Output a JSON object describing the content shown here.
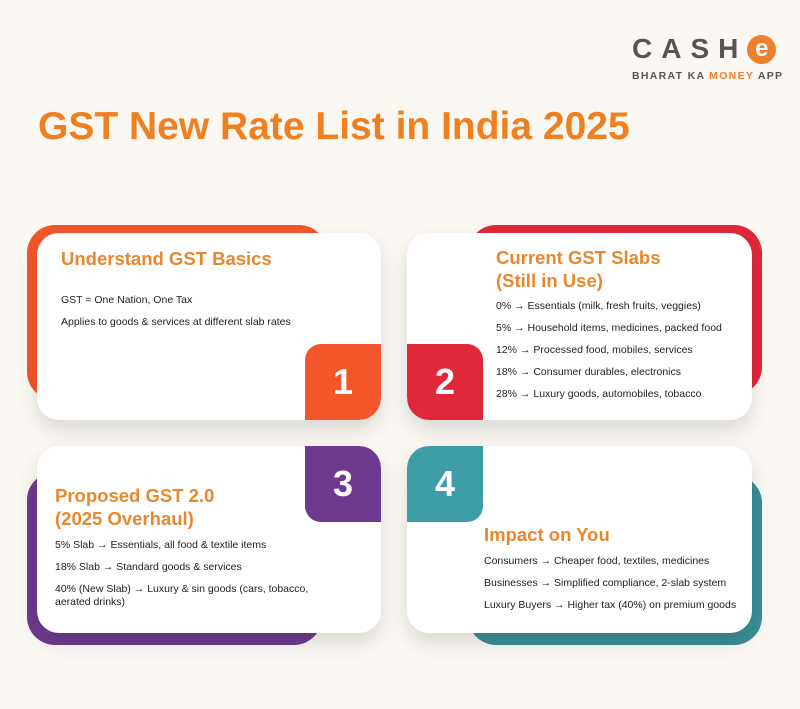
{
  "logo": {
    "word": "CASH",
    "e": "e",
    "tag_pre": "BHARAT KA ",
    "tag_hl": "MONEY",
    "tag_post": " APP"
  },
  "title": "GST New Rate List in India 2025",
  "colors": {
    "orange": "#f4562b",
    "red": "#e0283a",
    "purple": "#6e3a8f",
    "teal": "#3a9aa4",
    "heading": "#e8872e"
  },
  "cards": [
    {
      "number": "1",
      "heading": "Understand GST Basics",
      "lines": [
        "GST = One Nation, One Tax",
        "Applies to goods & services at different slab rates"
      ]
    },
    {
      "number": "2",
      "heading_1": "Current GST Slabs",
      "heading_2": "(Still in Use)",
      "lines": [
        "0% → Essentials (milk, fresh fruits, veggies)",
        "5% → Household items, medicines, packed food",
        "12% → Processed food, mobiles, services",
        "18% → Consumer durables, electronics",
        "28% → Luxury goods, automobiles, tobacco"
      ]
    },
    {
      "number": "3",
      "heading_1": "Proposed GST 2.0",
      "heading_2": "(2025 Overhaul)",
      "lines": [
        "5% Slab → Essentials, all food & textile items",
        "18% Slab → Standard goods & services",
        "40% (New Slab) → Luxury & sin goods (cars, tobacco, aerated drinks)"
      ]
    },
    {
      "number": "4",
      "heading": "Impact on You",
      "lines": [
        "Consumers → Cheaper food, textiles, medicines",
        "Businesses → Simplified compliance, 2-slab system",
        "Luxury Buyers → Higher tax (40%) on premium goods"
      ]
    }
  ]
}
